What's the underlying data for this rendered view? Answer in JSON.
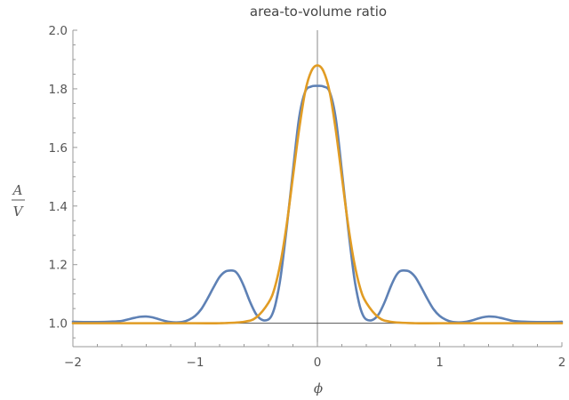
{
  "chart_data": {
    "type": "line",
    "title": "area-to-volume ratio",
    "xlabel": "ϕ",
    "ylabel": {
      "numerator": "A",
      "denominator": "V"
    },
    "xlim": [
      -2,
      2
    ],
    "ylim": [
      0.92,
      2.0
    ],
    "x_ticks": [
      -2,
      -1,
      0,
      1,
      2
    ],
    "x_tick_labels": [
      "−2",
      "−1",
      "0",
      "1",
      "2"
    ],
    "y_ticks": [
      1.0,
      1.2,
      1.4,
      1.6,
      1.8,
      2.0
    ],
    "y_tick_labels": [
      "1.0",
      "1.2",
      "1.4",
      "1.6",
      "1.8",
      "2.0"
    ],
    "grid": false,
    "series": [
      {
        "color": "#5e81b5",
        "x": [
          -2.0,
          -1.9,
          -1.8,
          -1.7,
          -1.6,
          -1.55,
          -1.5,
          -1.45,
          -1.4,
          -1.35,
          -1.3,
          -1.25,
          -1.2,
          -1.15,
          -1.1,
          -1.05,
          -1.0,
          -0.95,
          -0.9,
          -0.85,
          -0.8,
          -0.75,
          -0.7,
          -0.67,
          -0.64,
          -0.6,
          -0.55,
          -0.5,
          -0.45,
          -0.4,
          -0.37,
          -0.34,
          -0.3,
          -0.25,
          -0.2,
          -0.15,
          -0.1,
          -0.05,
          0.0,
          0.05,
          0.1,
          0.15,
          0.2,
          0.25,
          0.3,
          0.34,
          0.37,
          0.4,
          0.45,
          0.5,
          0.55,
          0.6,
          0.64,
          0.67,
          0.7,
          0.75,
          0.8,
          0.85,
          0.9,
          0.95,
          1.0,
          1.05,
          1.1,
          1.15,
          1.2,
          1.25,
          1.3,
          1.35,
          1.4,
          1.45,
          1.5,
          1.55,
          1.6,
          1.7,
          1.8,
          1.9,
          2.0
        ],
        "y": [
          1.005,
          1.004,
          1.004,
          1.005,
          1.008,
          1.013,
          1.018,
          1.022,
          1.023,
          1.02,
          1.014,
          1.008,
          1.004,
          1.003,
          1.005,
          1.012,
          1.025,
          1.048,
          1.083,
          1.122,
          1.158,
          1.177,
          1.18,
          1.176,
          1.16,
          1.125,
          1.072,
          1.03,
          1.011,
          1.013,
          1.03,
          1.07,
          1.16,
          1.33,
          1.52,
          1.7,
          1.79,
          1.808,
          1.81,
          1.808,
          1.79,
          1.7,
          1.52,
          1.33,
          1.16,
          1.07,
          1.03,
          1.013,
          1.011,
          1.03,
          1.072,
          1.125,
          1.16,
          1.176,
          1.18,
          1.177,
          1.158,
          1.122,
          1.083,
          1.048,
          1.025,
          1.012,
          1.005,
          1.003,
          1.004,
          1.008,
          1.014,
          1.02,
          1.023,
          1.022,
          1.018,
          1.013,
          1.008,
          1.005,
          1.004,
          1.004,
          1.005
        ]
      },
      {
        "color": "#e19c24",
        "x": [
          -2.0,
          -1.5,
          -1.0,
          -0.8,
          -0.6,
          -0.5,
          -0.4,
          -0.35,
          -0.3,
          -0.25,
          -0.2,
          -0.15,
          -0.1,
          -0.05,
          0.0,
          0.05,
          0.1,
          0.15,
          0.2,
          0.25,
          0.3,
          0.35,
          0.4,
          0.5,
          0.6,
          0.8,
          1.0,
          1.5,
          2.0
        ],
        "y": [
          1.0,
          1.0,
          1.0,
          1.0,
          1.005,
          1.02,
          1.07,
          1.12,
          1.21,
          1.34,
          1.5,
          1.66,
          1.79,
          1.86,
          1.88,
          1.86,
          1.79,
          1.66,
          1.5,
          1.34,
          1.21,
          1.12,
          1.07,
          1.02,
          1.005,
          1.0,
          1.0,
          1.0,
          1.0
        ]
      }
    ]
  }
}
